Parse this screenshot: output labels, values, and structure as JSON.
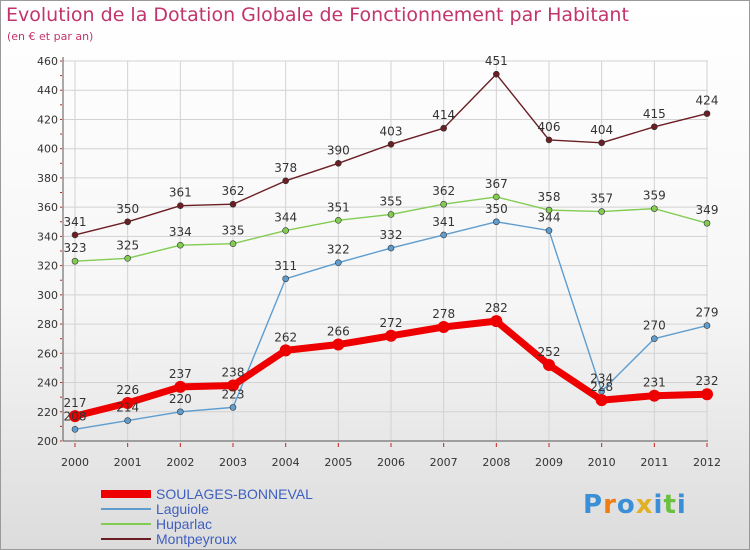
{
  "title": "Evolution de la Dotation Globale de Fonctionnement par Habitant",
  "subtitle": "(en € et par an)",
  "logo": {
    "letters": [
      "P",
      "r",
      "o",
      "x",
      "i",
      "t",
      "i"
    ],
    "colors": [
      "#3a8fd6",
      "#f07c14",
      "#3a8fd6",
      "#e2b024",
      "#3a8fd6",
      "#6cc040",
      "#3a8fd6"
    ]
  },
  "chart_data": {
    "type": "line",
    "title": "Evolution de la Dotation Globale de Fonctionnement par Habitant",
    "subtitle": "(en € et par an)",
    "xlabel": "",
    "ylabel": "",
    "ylim": [
      200,
      460
    ],
    "yticks": [
      200,
      220,
      240,
      260,
      280,
      300,
      320,
      340,
      360,
      380,
      400,
      420,
      440,
      460
    ],
    "categories": [
      "2000",
      "2001",
      "2002",
      "2003",
      "2004",
      "2005",
      "2006",
      "2007",
      "2008",
      "2009",
      "2010",
      "2011",
      "2012"
    ],
    "grid": true,
    "legend_position": "bottom-left",
    "series": [
      {
        "name": "Montpeyroux",
        "color": "#6b1e24",
        "values": [
          341,
          350,
          361,
          362,
          378,
          390,
          403,
          414,
          451,
          406,
          404,
          415,
          424
        ]
      },
      {
        "name": "Huparlac",
        "color": "#82cc52",
        "values": [
          323,
          325,
          334,
          335,
          344,
          351,
          355,
          362,
          367,
          358,
          357,
          359,
          349
        ]
      },
      {
        "name": "Laguiole",
        "color": "#5f9dcf",
        "values": [
          208,
          214,
          220,
          223,
          311,
          322,
          332,
          341,
          350,
          344,
          234,
          270,
          279
        ]
      },
      {
        "name": "SOULAGES-BONNEVAL",
        "color": "#ee0000",
        "values": [
          217,
          226,
          237,
          238,
          262,
          266,
          272,
          278,
          282,
          252,
          228,
          231,
          232
        ]
      }
    ]
  }
}
